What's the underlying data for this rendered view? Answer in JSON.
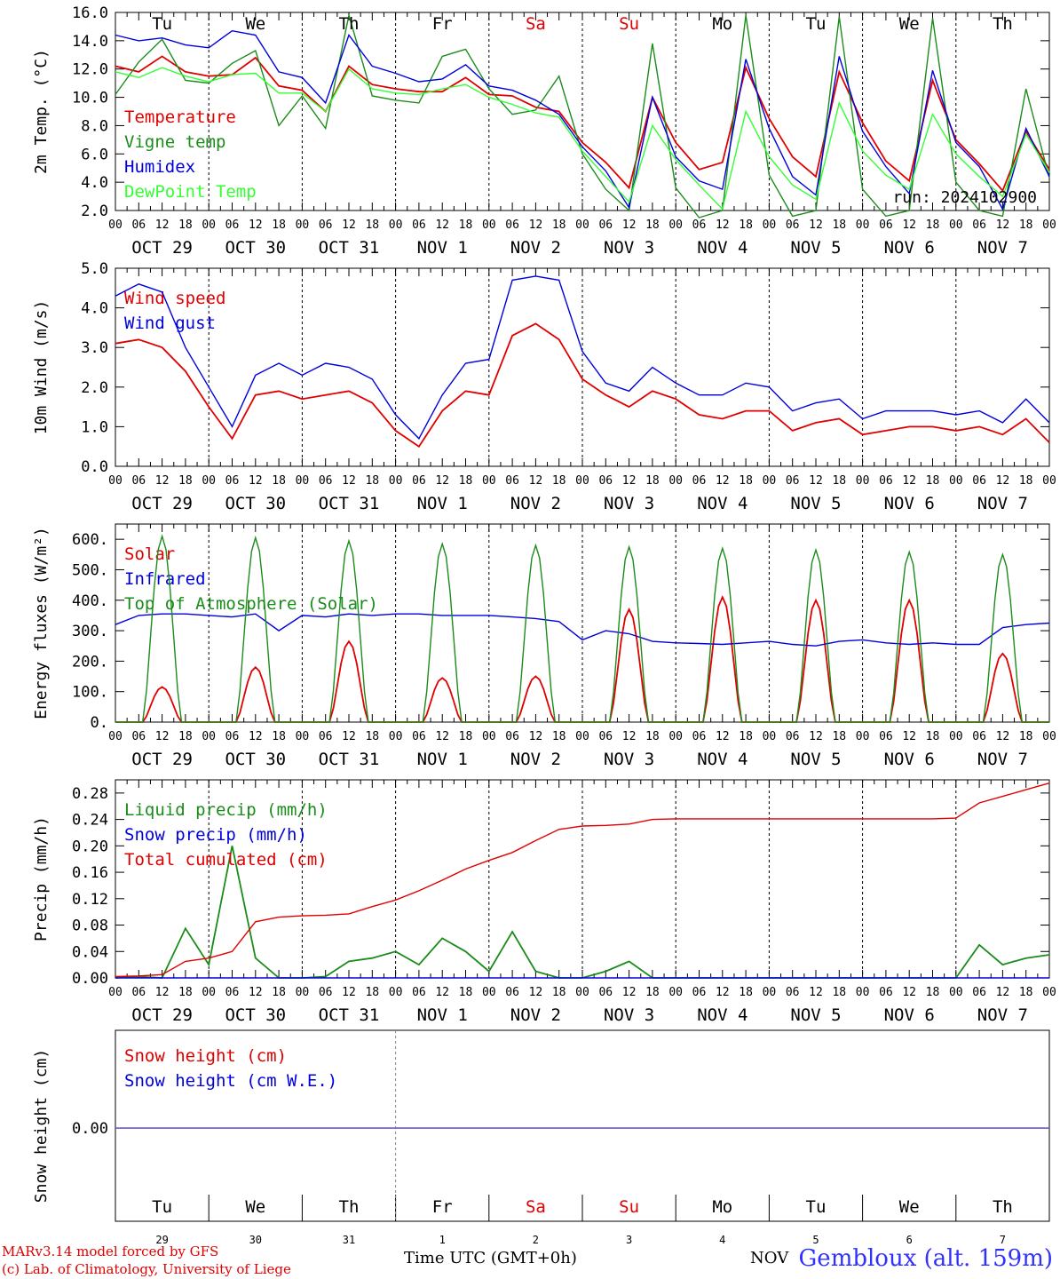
{
  "footer": {
    "model": "MARv3.14 model forced by GFS",
    "credit": "(c) Lab. of Climatology, University of Liege",
    "xlabel": "Time UTC (GMT+0h)",
    "month_label": "NOV",
    "location": "Gembloux (alt. 159m)"
  },
  "run_label": "run: 2024102900",
  "hour_labels": [
    "00",
    "06",
    "12",
    "18"
  ],
  "date_labels": [
    "OCT 29",
    "OCT 30",
    "OCT 31",
    "NOV  1",
    "NOV  2",
    "NOV  3",
    "NOV  4",
    "NOV  5",
    "NOV  6",
    "NOV  7"
  ],
  "weekdays": [
    {
      "label": "Tu",
      "color": "#000000"
    },
    {
      "label": "We",
      "color": "#000000"
    },
    {
      "label": "Th",
      "color": "#000000"
    },
    {
      "label": "Fr",
      "color": "#000000"
    },
    {
      "label": "Sa",
      "color": "#e00000"
    },
    {
      "label": "Su",
      "color": "#e00000"
    },
    {
      "label": "Mo",
      "color": "#000000"
    },
    {
      "label": "Tu",
      "color": "#000000"
    },
    {
      "label": "We",
      "color": "#000000"
    },
    {
      "label": "Th",
      "color": "#000000"
    }
  ],
  "day_numbers": [
    "29",
    "30",
    "31",
    "1",
    "2",
    "3",
    "4",
    "5",
    "6",
    "7"
  ],
  "chart_data": [
    {
      "type": "line",
      "ylabel": "2m Temp. (°C)",
      "ylim": [
        2,
        16
      ],
      "yticks": [
        "2.0",
        "4.0",
        "6.0",
        "8.0",
        "10.0",
        "12.0",
        "14.0",
        "16.0"
      ],
      "x_hours": [
        0,
        6,
        12,
        18,
        24,
        30,
        36,
        42,
        48,
        54,
        60,
        66,
        72,
        78,
        84,
        90,
        96,
        102,
        108,
        114,
        120,
        126,
        132,
        138,
        144,
        150,
        156,
        162,
        168,
        174,
        180,
        186,
        192,
        198,
        204,
        210,
        216,
        222,
        228,
        234,
        240
      ],
      "series": [
        {
          "name": "Temperature",
          "color": "#e00000",
          "values": [
            12.2,
            11.8,
            12.9,
            11.8,
            11.5,
            11.6,
            12.8,
            10.8,
            10.5,
            9.0,
            12.2,
            10.9,
            10.6,
            10.4,
            10.4,
            11.4,
            10.2,
            10.1,
            9.3,
            9.0,
            6.8,
            5.4,
            3.6,
            10.0,
            6.8,
            4.9,
            5.4,
            12.1,
            8.5,
            5.8,
            4.4,
            11.8,
            8.2,
            5.5,
            4.1,
            11.2,
            7.0,
            5.3,
            3.4,
            7.6,
            4.9
          ]
        },
        {
          "name": "Vigne temp",
          "color": "#1a8c1a",
          "values": [
            10.2,
            12.5,
            14.1,
            11.2,
            11.0,
            12.4,
            13.3,
            8.0,
            10.1,
            7.8,
            15.8,
            10.1,
            9.8,
            9.6,
            12.9,
            13.4,
            10.6,
            8.8,
            9.1,
            11.5,
            6.0,
            3.5,
            2.0,
            13.8,
            3.6,
            1.5,
            2.0,
            15.8,
            4.5,
            1.6,
            2.0,
            15.7,
            3.5,
            1.6,
            2.0,
            15.6,
            4.0,
            2.0,
            1.6,
            10.6,
            4.3
          ]
        },
        {
          "name": "Humidex",
          "color": "#0000dd",
          "values": [
            14.4,
            14.0,
            14.2,
            13.7,
            13.5,
            14.7,
            14.4,
            11.8,
            11.4,
            9.6,
            14.4,
            12.2,
            11.7,
            11.1,
            11.3,
            12.3,
            10.8,
            10.5,
            9.8,
            8.8,
            6.5,
            4.8,
            2.2,
            10.0,
            5.8,
            4.1,
            3.5,
            12.7,
            7.8,
            4.4,
            3.1,
            12.9,
            7.6,
            5.1,
            3.2,
            11.9,
            6.8,
            5.1,
            2.1,
            7.8,
            4.4
          ]
        },
        {
          "name": "DewPoint Temp",
          "color": "#33ff33",
          "values": [
            11.8,
            11.4,
            12.1,
            11.5,
            11.1,
            11.6,
            11.7,
            10.3,
            10.3,
            9.0,
            12.0,
            10.6,
            10.3,
            10.2,
            10.6,
            10.9,
            10.0,
            9.5,
            8.9,
            8.6,
            6.2,
            4.4,
            2.6,
            8.0,
            5.6,
            3.8,
            2.1,
            9.0,
            5.8,
            3.8,
            2.8,
            9.6,
            6.2,
            4.5,
            3.5,
            8.8,
            6.0,
            4.4,
            3.0,
            7.4,
            4.7
          ]
        }
      ]
    },
    {
      "type": "line",
      "ylabel": "10m Wind (m/s)",
      "ylim": [
        0,
        5
      ],
      "yticks": [
        "0.0",
        "1.0",
        "2.0",
        "3.0",
        "4.0",
        "5.0"
      ],
      "x_hours": [
        0,
        6,
        12,
        18,
        24,
        30,
        36,
        42,
        48,
        54,
        60,
        66,
        72,
        78,
        84,
        90,
        96,
        102,
        108,
        114,
        120,
        126,
        132,
        138,
        144,
        150,
        156,
        162,
        168,
        174,
        180,
        186,
        192,
        198,
        204,
        210,
        216,
        222,
        228,
        234,
        240
      ],
      "series": [
        {
          "name": "Wind speed",
          "color": "#e00000",
          "values": [
            3.1,
            3.2,
            3.0,
            2.4,
            1.5,
            0.7,
            1.8,
            1.9,
            1.7,
            1.8,
            1.9,
            1.6,
            0.9,
            0.5,
            1.4,
            1.9,
            1.8,
            3.3,
            3.6,
            3.2,
            2.2,
            1.8,
            1.5,
            1.9,
            1.7,
            1.3,
            1.2,
            1.4,
            1.4,
            0.9,
            1.1,
            1.2,
            0.8,
            0.9,
            1.0,
            1.0,
            0.9,
            1.0,
            0.8,
            1.2,
            0.6
          ]
        },
        {
          "name": "Wind gust",
          "color": "#0000dd",
          "values": [
            4.3,
            4.6,
            4.4,
            3.0,
            2.0,
            1.0,
            2.3,
            2.6,
            2.3,
            2.6,
            2.5,
            2.2,
            1.3,
            0.7,
            1.8,
            2.6,
            2.7,
            4.7,
            4.8,
            4.7,
            2.9,
            2.1,
            1.9,
            2.5,
            2.1,
            1.8,
            1.8,
            2.1,
            2.0,
            1.4,
            1.6,
            1.7,
            1.2,
            1.4,
            1.4,
            1.4,
            1.3,
            1.4,
            1.1,
            1.7,
            1.1
          ]
        }
      ]
    },
    {
      "type": "line",
      "ylabel": "Energy fluxes (W/m²)",
      "ylim": [
        0,
        650
      ],
      "yticks": [
        "0.",
        "100.",
        "200.",
        "300.",
        "400.",
        "500.",
        "600."
      ],
      "series": [
        {
          "name": "Solar",
          "color": "#e00000",
          "peaks": [
            115,
            180,
            265,
            145,
            150,
            370,
            410,
            400,
            400,
            225
          ]
        },
        {
          "name": "Infrared",
          "color": "#0000dd",
          "x_hours": [
            0,
            6,
            12,
            18,
            24,
            30,
            36,
            42,
            48,
            54,
            60,
            66,
            72,
            78,
            84,
            90,
            96,
            102,
            108,
            114,
            120,
            126,
            132,
            138,
            144,
            150,
            156,
            162,
            168,
            174,
            180,
            186,
            192,
            198,
            204,
            210,
            216,
            222,
            228,
            234,
            240
          ],
          "values": [
            320,
            350,
            355,
            355,
            350,
            345,
            355,
            300,
            350,
            345,
            355,
            350,
            355,
            355,
            350,
            350,
            350,
            345,
            340,
            330,
            270,
            300,
            290,
            265,
            260,
            258,
            255,
            260,
            265,
            255,
            250,
            265,
            270,
            260,
            255,
            260,
            255,
            255,
            310,
            320,
            325
          ]
        },
        {
          "name": "Top of Atmosphere (Solar)",
          "color": "#1a8c1a",
          "peaks": [
            610,
            605,
            595,
            585,
            580,
            575,
            570,
            565,
            558,
            550
          ]
        }
      ]
    },
    {
      "type": "line",
      "ylabel": "Precip (mm/h)",
      "ylim": [
        0,
        0.3
      ],
      "yticks": [
        "0.00",
        "0.04",
        "0.08",
        "0.12",
        "0.16",
        "0.20",
        "0.24",
        "0.28"
      ],
      "x_hours": [
        0,
        6,
        12,
        18,
        24,
        30,
        36,
        42,
        48,
        54,
        60,
        66,
        72,
        78,
        84,
        90,
        96,
        102,
        108,
        114,
        120,
        126,
        132,
        138,
        144,
        150,
        156,
        162,
        168,
        174,
        180,
        186,
        192,
        198,
        204,
        210,
        216,
        222,
        228,
        234,
        240
      ],
      "series": [
        {
          "name": "Liquid precip (mm/h)",
          "color": "#1a8c1a",
          "values": [
            0.0,
            0.002,
            0.0,
            0.075,
            0.02,
            0.2,
            0.03,
            0.0,
            0.0,
            0.002,
            0.025,
            0.03,
            0.04,
            0.02,
            0.06,
            0.04,
            0.01,
            0.07,
            0.01,
            0.0,
            0.0,
            0.01,
            0.025,
            0.0,
            0.0,
            0.0,
            0.0,
            0.0,
            0.0,
            0.0,
            0.0,
            0.0,
            0.0,
            0.0,
            0.0,
            0.0,
            0.0,
            0.05,
            0.02,
            0.03,
            0.035
          ]
        },
        {
          "name": "Snow precip (mm/h)",
          "color": "#0000dd",
          "values": [
            0,
            0,
            0,
            0,
            0,
            0,
            0,
            0,
            0,
            0,
            0,
            0,
            0,
            0,
            0,
            0,
            0,
            0,
            0,
            0,
            0,
            0,
            0,
            0,
            0,
            0,
            0,
            0,
            0,
            0,
            0,
            0,
            0,
            0,
            0,
            0,
            0,
            0,
            0,
            0,
            0
          ]
        },
        {
          "name": "Total cumulated (cm)",
          "color": "#e00000",
          "values": [
            0.002,
            0.003,
            0.005,
            0.025,
            0.03,
            0.04,
            0.085,
            0.092,
            0.094,
            0.095,
            0.097,
            0.108,
            0.118,
            0.132,
            0.148,
            0.165,
            0.178,
            0.19,
            0.208,
            0.225,
            0.23,
            0.231,
            0.233,
            0.24,
            0.241,
            0.241,
            0.241,
            0.241,
            0.241,
            0.241,
            0.241,
            0.241,
            0.241,
            0.241,
            0.241,
            0.241,
            0.242,
            0.265,
            0.275,
            0.285,
            0.295
          ]
        }
      ]
    },
    {
      "type": "line",
      "ylabel": "Snow height (cm)",
      "yticks": [
        "0.00"
      ],
      "series": [
        {
          "name": "Snow height (cm)",
          "color": "#e00000",
          "values": [
            0,
            0
          ]
        },
        {
          "name": "Snow height (cm W.E.)",
          "color": "#0000dd",
          "values": [
            0,
            0
          ]
        }
      ]
    }
  ]
}
